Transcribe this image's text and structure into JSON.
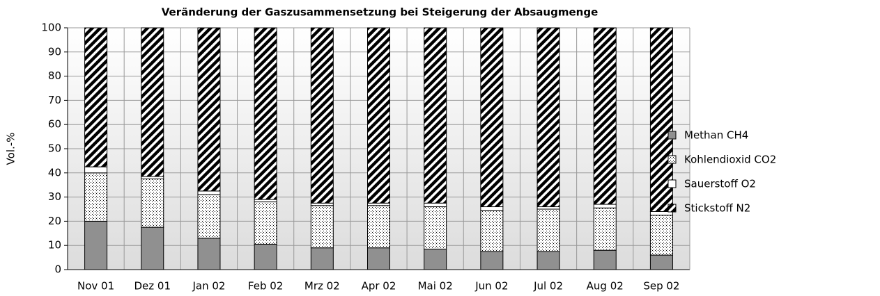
{
  "chart_data": {
    "type": "stacked_bar",
    "title": "Veränderung der Gaszusammensetzung bei Steigerung der Absaugmenge",
    "y_label": "Vol.-%",
    "categories": [
      "Nov 01",
      "Dez 01",
      "Jan 02",
      "Feb 02",
      "Mrz 02",
      "Apr 02",
      "Mai 02",
      "Jun 02",
      "Jul 02",
      "Aug 02",
      "Sep 02"
    ],
    "series": [
      {
        "name": "Methan CH4",
        "color": "#909090",
        "pattern": "solid",
        "values": [
          20,
          17.5,
          13,
          10.5,
          9,
          9,
          8.5,
          7.5,
          7.5,
          8,
          6
        ]
      },
      {
        "name": "Kohlendioxid CO2",
        "color": "#ffffff",
        "pattern": "dots",
        "values": [
          20,
          20,
          18,
          17.5,
          17.5,
          17.5,
          17.5,
          17,
          17.5,
          17.5,
          16.5
        ]
      },
      {
        "name": "Sauerstoff O2",
        "color": "#ffffff",
        "pattern": "solid",
        "values": [
          2.5,
          1,
          1.5,
          1,
          1,
          1,
          1.5,
          1.5,
          1,
          1.5,
          1.5
        ]
      },
      {
        "name": "Stickstoff N2",
        "color": "#ffffff",
        "pattern": "stripes",
        "values": [
          57.5,
          61.5,
          67.5,
          71,
          72.5,
          72.5,
          72.5,
          74,
          74,
          73,
          76
        ]
      }
    ],
    "ylim": [
      0,
      100
    ],
    "yticks": [
      0,
      10,
      20,
      30,
      40,
      50,
      60,
      70,
      80,
      90,
      100
    ],
    "grid": true,
    "legend": "right"
  }
}
